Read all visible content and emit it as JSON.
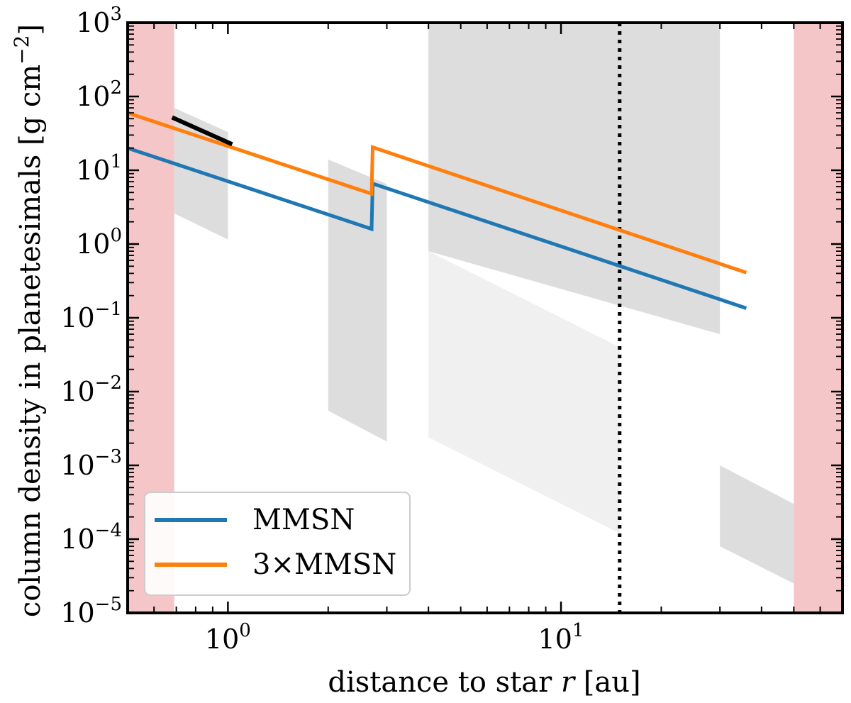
{
  "chart_data": {
    "type": "line",
    "xscale": "log",
    "yscale": "log",
    "xlim": [
      0.5,
      70
    ],
    "ylim": [
      1e-05,
      1000
    ],
    "xlabel_main": "distance to star ",
    "xlabel_var": "r",
    "xlabel_unit": " [au]",
    "ylabel": "column density in planetesimals [g cm",
    "ylabel_exp": "−2",
    "ylabel_close": "]",
    "x_ticks": [
      {
        "value": 1,
        "base": "10",
        "exp": "0"
      },
      {
        "value": 10,
        "base": "10",
        "exp": "1"
      }
    ],
    "y_ticks": [
      {
        "value": 1000,
        "base": "10",
        "exp": "3"
      },
      {
        "value": 100,
        "base": "10",
        "exp": "2"
      },
      {
        "value": 10,
        "base": "10",
        "exp": "1"
      },
      {
        "value": 1,
        "base": "10",
        "exp": "0"
      },
      {
        "value": 0.1,
        "base": "10",
        "exp": "−1"
      },
      {
        "value": 0.01,
        "base": "10",
        "exp": "−2"
      },
      {
        "value": 0.001,
        "base": "10",
        "exp": "−3"
      },
      {
        "value": 0.0001,
        "base": "10",
        "exp": "−4"
      },
      {
        "value": 1e-05,
        "base": "10",
        "exp": "−5"
      }
    ],
    "series": [
      {
        "name": "MMSN",
        "color": "#1f77b4",
        "points": [
          [
            0.5,
            20.0
          ],
          [
            2.7,
            1.6
          ],
          [
            2.72,
            6.6
          ],
          [
            36,
            0.135
          ]
        ]
      },
      {
        "name": "3×MMSN",
        "color": "#ff7f0e",
        "points": [
          [
            0.5,
            60.0
          ],
          [
            2.7,
            4.8
          ],
          [
            2.72,
            20.5
          ],
          [
            36,
            0.41
          ]
        ]
      },
      {
        "name": "black segment",
        "color": "#000000",
        "in_legend": false,
        "points": [
          [
            0.68,
            52.0
          ],
          [
            1.03,
            22.5
          ]
        ]
      }
    ],
    "shaded_regions": [
      {
        "kind": "excluded",
        "color": "#f4c6c8",
        "x": [
          0.5,
          0.69
        ]
      },
      {
        "kind": "excluded",
        "color": "#f4c6c8",
        "x": [
          50,
          70
        ]
      },
      {
        "kind": "band",
        "color": "#dddddd",
        "x": [
          0.69,
          1.0
        ],
        "top": [
          70,
          33
        ],
        "bottom": [
          2.6,
          1.15
        ]
      },
      {
        "kind": "band",
        "color": "#dddddd",
        "x": [
          2.0,
          3.0
        ],
        "top": [
          14,
          6.5
        ],
        "bottom": [
          0.0055,
          0.0021
        ]
      },
      {
        "kind": "band",
        "color": "#dddddd",
        "x": [
          4.0,
          30.0
        ],
        "top": [
          1000,
          1000
        ],
        "bottom": [
          0.8,
          0.06
        ]
      },
      {
        "kind": "band",
        "color": "#f0f0f0",
        "x": [
          4.0,
          15.0
        ],
        "top": [
          0.8,
          0.04
        ],
        "bottom": [
          0.0024,
          0.00012
        ]
      },
      {
        "kind": "band",
        "color": "#dddddd",
        "x": [
          30.0,
          50.0
        ],
        "top": [
          0.001,
          0.0003
        ],
        "bottom": [
          8e-05,
          2.5e-05
        ]
      }
    ],
    "vertical_lines": [
      {
        "x": 15,
        "style": "dotted",
        "color": "#000000"
      }
    ],
    "legend": {
      "placement": "lower-left",
      "entries": [
        {
          "label": "MMSN",
          "color": "#1f77b4"
        },
        {
          "label": "3×MMSN",
          "color": "#ff7f0e"
        }
      ]
    }
  }
}
